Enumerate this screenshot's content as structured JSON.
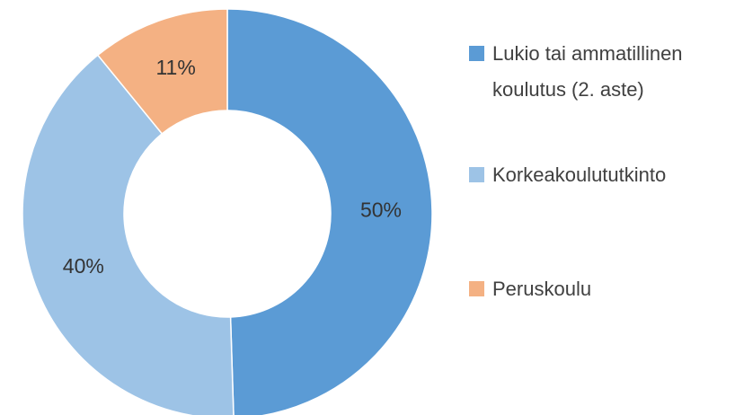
{
  "chart_data": {
    "type": "donut",
    "categories": [
      "Lukio tai ammatillinen koulutus (2. aste)",
      "Korkeakoulututkinto",
      "Peruskoulu"
    ],
    "values": [
      50,
      40,
      11
    ],
    "value_labels": [
      "50%",
      "40%",
      "11%"
    ],
    "colors": [
      "#5b9bd5",
      "#9dc3e6",
      "#f4b183"
    ],
    "legend": "right"
  }
}
